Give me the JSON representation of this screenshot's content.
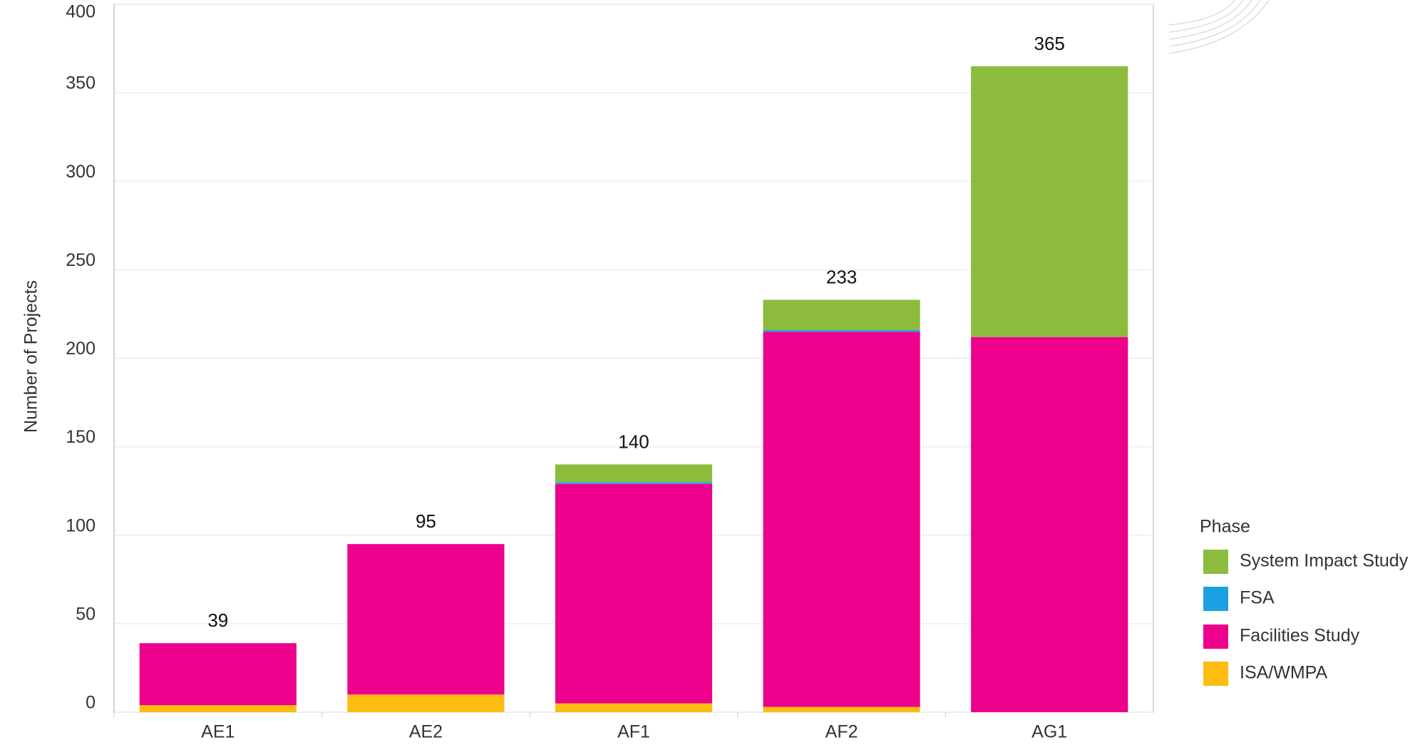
{
  "chart_data": {
    "type": "stacked_bar",
    "y_label": "Number of Projects",
    "categories": [
      "AE1",
      "AE2",
      "AF1",
      "AF2",
      "AG1"
    ],
    "series": [
      {
        "name": "ISA/WMPA",
        "color": "#fdbc12",
        "values": [
          4,
          10,
          5,
          3,
          0
        ]
      },
      {
        "name": "Facilities Study",
        "color": "#ec008c",
        "values": [
          35,
          85,
          124,
          212,
          212
        ]
      },
      {
        "name": "FSA",
        "color": "#1ba1e2",
        "values": [
          0,
          0,
          1,
          1,
          0
        ]
      },
      {
        "name": "System Impact Study",
        "color": "#8cbb3e",
        "values": [
          0,
          0,
          10,
          17,
          153
        ]
      }
    ],
    "totals": [
      39,
      95,
      140,
      233,
      365
    ],
    "legend_title": "Phase",
    "legend_position": "right",
    "ylim": [
      0,
      400
    ],
    "yticks": [
      0,
      50,
      100,
      150,
      200,
      250,
      300,
      350,
      400
    ],
    "grid": true
  }
}
